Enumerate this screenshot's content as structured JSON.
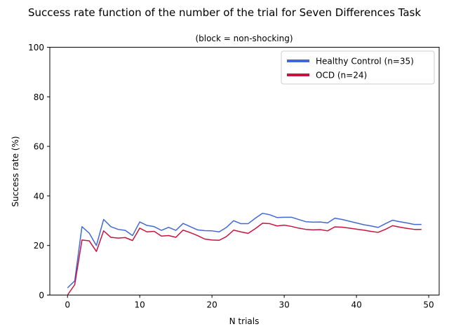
{
  "chart_data": {
    "type": "line",
    "title": "Success rate function of the number of the trial for Seven Differences Task",
    "subtitle": "(block = non-shocking)",
    "xlabel": "N trials",
    "ylabel": "Success rate (%)",
    "xlim": [
      -2.45,
      51.45
    ],
    "ylim": [
      0,
      100
    ],
    "xticks": [
      0,
      10,
      20,
      30,
      40,
      50
    ],
    "yticks": [
      0,
      20,
      40,
      60,
      80,
      100
    ],
    "grid": false,
    "legend_position": "top-right",
    "series": [
      {
        "name": "Healthy Control (n=35)",
        "color": "#4169d4",
        "x": [
          0,
          1,
          2,
          3,
          4,
          5,
          6,
          7,
          8,
          9,
          10,
          11,
          12,
          13,
          14,
          15,
          16,
          17,
          18,
          19,
          20,
          21,
          22,
          23,
          24,
          25,
          26,
          27,
          28,
          29,
          30,
          31,
          32,
          33,
          34,
          35,
          36,
          37,
          38,
          39,
          40,
          41,
          42,
          43,
          44,
          45,
          46,
          47,
          48,
          49
        ],
        "values": [
          2.9,
          5.7,
          27.6,
          25.0,
          20.0,
          30.5,
          27.6,
          26.5,
          26.1,
          24.0,
          29.5,
          28.1,
          27.6,
          26.1,
          27.3,
          26.1,
          28.9,
          27.6,
          26.3,
          26.0,
          25.9,
          25.5,
          27.3,
          30.0,
          28.8,
          28.8,
          31.0,
          33.0,
          32.4,
          31.3,
          31.4,
          31.4,
          30.5,
          29.6,
          29.4,
          29.5,
          29.1,
          31.0,
          30.5,
          29.8,
          29.1,
          28.4,
          27.9,
          27.3,
          28.8,
          30.2,
          29.6,
          29.1,
          28.5,
          28.5
        ]
      },
      {
        "name": "OCD (n=24)",
        "color": "#c8143c",
        "x": [
          0,
          1,
          2,
          3,
          4,
          5,
          6,
          7,
          8,
          9,
          10,
          11,
          12,
          13,
          14,
          15,
          16,
          17,
          18,
          19,
          20,
          21,
          22,
          23,
          24,
          25,
          26,
          27,
          28,
          29,
          30,
          31,
          32,
          33,
          34,
          35,
          36,
          37,
          38,
          39,
          40,
          41,
          42,
          43,
          44,
          45,
          46,
          47,
          48,
          49
        ],
        "values": [
          0.0,
          4.2,
          22.2,
          21.9,
          17.6,
          25.9,
          23.3,
          23.0,
          23.2,
          22.0,
          27.0,
          25.5,
          25.7,
          23.8,
          24.0,
          23.3,
          26.2,
          25.2,
          24.0,
          22.6,
          22.2,
          22.1,
          23.6,
          26.2,
          25.5,
          24.9,
          26.8,
          29.0,
          28.8,
          27.9,
          28.2,
          27.7,
          27.0,
          26.5,
          26.3,
          26.4,
          25.9,
          27.5,
          27.4,
          27.0,
          26.6,
          26.2,
          25.7,
          25.3,
          26.5,
          28.0,
          27.4,
          26.9,
          26.5,
          26.5
        ]
      }
    ]
  }
}
